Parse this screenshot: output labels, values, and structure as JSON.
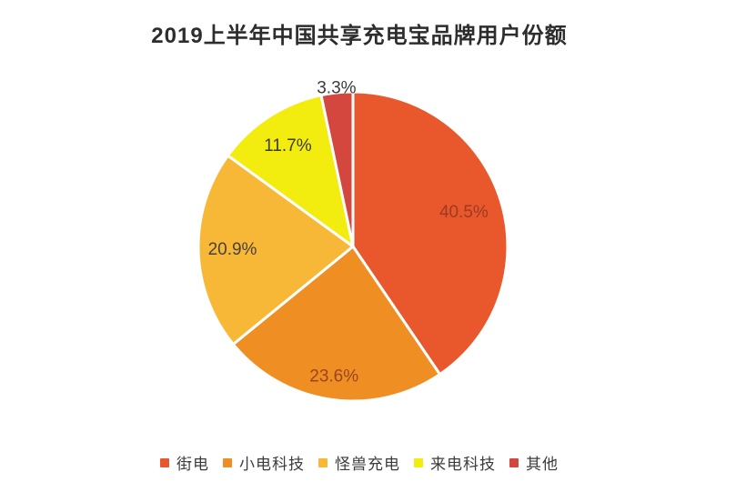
{
  "title": "2019上半年中国共享充电宝品牌用户份额",
  "chart_data": {
    "type": "pie",
    "title": "2019上半年中国共享充电宝品牌用户份额",
    "categories": [
      "街电",
      "小电科技",
      "怪兽充电",
      "来电科技",
      "其他"
    ],
    "values": [
      40.5,
      23.6,
      20.9,
      11.7,
      3.3
    ],
    "data_labels": [
      "40.5%",
      "23.6%",
      "20.9%",
      "11.7%",
      "3.3%"
    ],
    "colors": [
      "#e8582c",
      "#ef8e22",
      "#f7b838",
      "#f3ec0f",
      "#d4473e"
    ],
    "label_colors": [
      "#9e3a20",
      "#9c4423",
      "#4a4038",
      "#3a3a3a",
      "#3a3a3a"
    ],
    "slugs": [
      "jiedian",
      "xiaodian-keji",
      "guaishou-chongdian",
      "laidian-keji",
      "qita"
    ],
    "layout": {
      "start_angle_deg": 0,
      "clockwise": true,
      "label_radius_factors": [
        0.75,
        0.85,
        0.78,
        0.775,
        1.03
      ],
      "label_outside": [
        false,
        false,
        false,
        false,
        true
      ],
      "legend_position": "bottom",
      "background": "#ffffff",
      "slice_divider_color": "#ffffff"
    }
  },
  "legend": {
    "items": [
      {
        "label": "街电",
        "color": "#e8582c",
        "slug": "jiedian"
      },
      {
        "label": "小电科技",
        "color": "#ef8e22",
        "slug": "xiaodian-keji"
      },
      {
        "label": "怪兽充电",
        "color": "#f7b838",
        "slug": "guaishou-chongdian"
      },
      {
        "label": "来电科技",
        "color": "#f3ec0f",
        "slug": "laidian-keji"
      },
      {
        "label": "其他",
        "color": "#d4473e",
        "slug": "qita"
      }
    ]
  }
}
